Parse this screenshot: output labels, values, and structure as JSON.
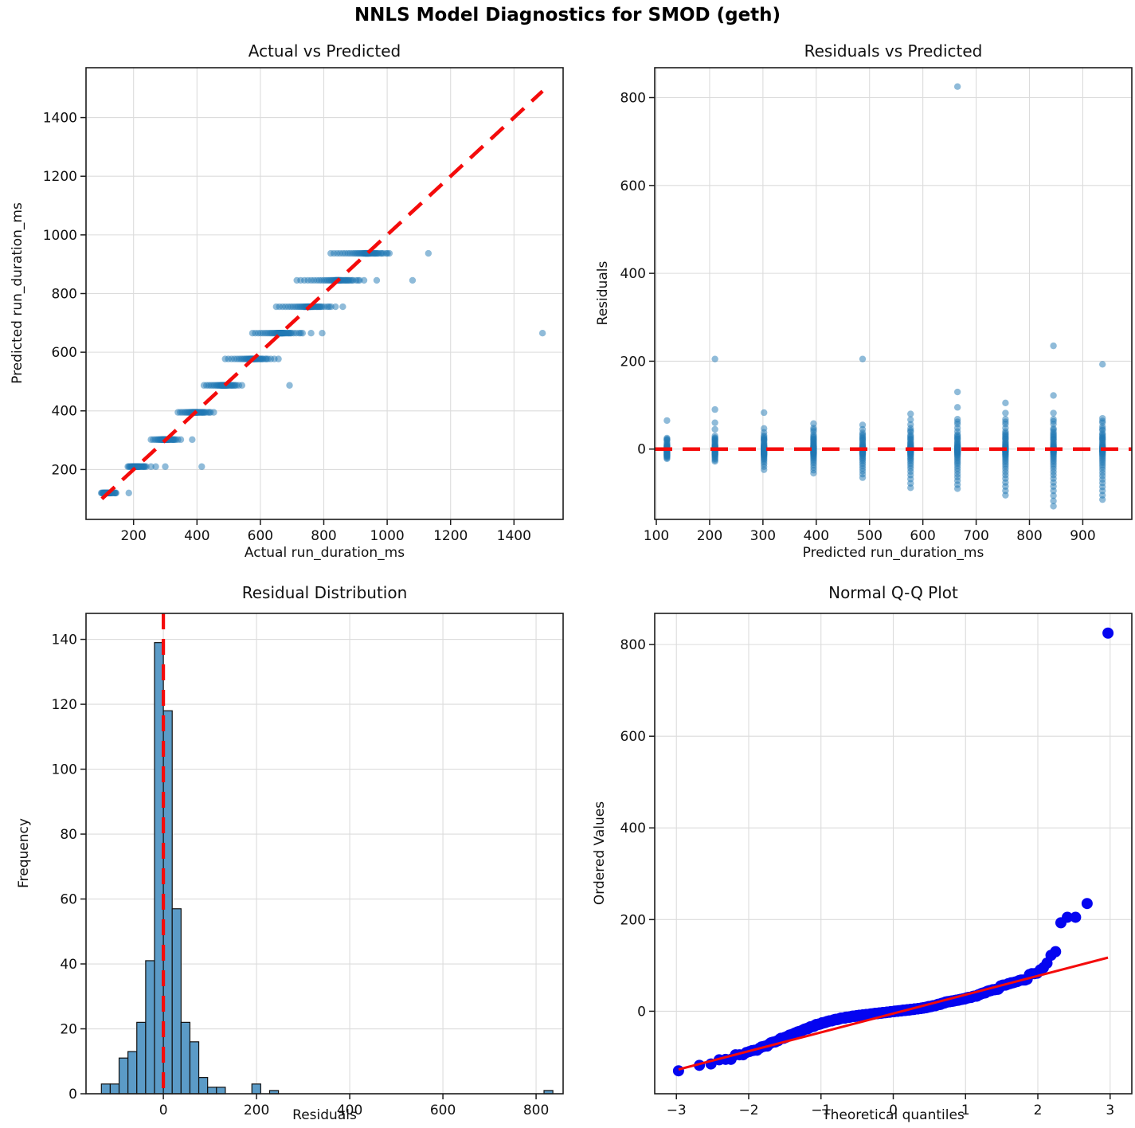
{
  "figure": {
    "title": "NNLS Model Diagnostics for SMOD (geth)"
  },
  "colors": {
    "background": "#ffffff",
    "grid": "#dcdcdc",
    "spine": "#1c1c1c",
    "tick_label": "#111111",
    "scatter_point": "#1f77b4",
    "scatter_opacity": 0.5,
    "hist_fill": "#5b9bc7",
    "hist_edge": "#111111",
    "qq_point": "#0505f0",
    "reference_red": "#f40b0b"
  },
  "chart_data": {
    "dataset": {
      "description": "Model points grouped by predicted step value; residual = actual - predicted. Shared by all four panels.",
      "bands": [
        {
          "predicted": 120,
          "residuals": [
            -22,
            -20,
            -18,
            -16,
            -15,
            -14,
            -13,
            -12,
            -11,
            -10,
            -9,
            -8,
            -7,
            -6,
            -5,
            -4,
            -3,
            -2,
            -1,
            0,
            1,
            2,
            3,
            4,
            5,
            6,
            7,
            8,
            10,
            12,
            15,
            20,
            21,
            23,
            25,
            65
          ]
        },
        {
          "predicted": 210,
          "residuals": [
            -28,
            -25,
            -22,
            -19,
            -17,
            -15,
            -13,
            -12,
            -11,
            -10,
            -9,
            -8,
            -7,
            -6,
            -5,
            -4,
            -3,
            -2,
            -1,
            0,
            1,
            2,
            3,
            4,
            5,
            6,
            7,
            8,
            10,
            12,
            15,
            18,
            20,
            22,
            24,
            26,
            30,
            45,
            60,
            90,
            205
          ]
        },
        {
          "predicted": 302,
          "residuals": [
            -47,
            -40,
            -34,
            -29,
            -25,
            -22,
            -19,
            -17,
            -15,
            -13,
            -12,
            -11,
            -10,
            -9,
            -8,
            -7,
            -6,
            -5,
            -4,
            -3,
            -2,
            -1,
            0,
            1,
            2,
            3,
            4,
            5,
            6,
            7,
            9,
            11,
            13,
            16,
            20,
            21,
            23,
            25,
            28,
            31,
            38,
            47,
            83
          ]
        },
        {
          "predicted": 395,
          "residuals": [
            -55,
            -48,
            -42,
            -36,
            -31,
            -27,
            -23,
            -20,
            -17,
            -15,
            -13,
            -11,
            -10,
            -9,
            -8,
            -7,
            -6,
            -5,
            -4,
            -3,
            -2,
            -1,
            0,
            1,
            2,
            3,
            4,
            5,
            6,
            7,
            9,
            11,
            13,
            15,
            18,
            20,
            22,
            24,
            27,
            29,
            33,
            40,
            44,
            48,
            58
          ]
        },
        {
          "predicted": 487,
          "residuals": [
            -65,
            -57,
            -50,
            -44,
            -38,
            -33,
            -28,
            -24,
            -21,
            -18,
            -15,
            -13,
            -11,
            -10,
            -9,
            -8,
            -7,
            -6,
            -5,
            -4,
            -3,
            -2,
            -1,
            0,
            1,
            2,
            3,
            4,
            5,
            6,
            8,
            10,
            12,
            15,
            19,
            21,
            24,
            26,
            30,
            33,
            37,
            45,
            55,
            205
          ]
        },
        {
          "predicted": 577,
          "residuals": [
            -88,
            -78,
            -68,
            -59,
            -51,
            -44,
            -38,
            -33,
            -28,
            -24,
            -21,
            -18,
            -15,
            -13,
            -11,
            -9,
            -8,
            -7,
            -6,
            -5,
            -4,
            -3,
            -2,
            -1,
            0,
            1,
            2,
            3,
            4,
            5,
            6,
            8,
            10,
            12,
            14,
            17,
            21,
            23,
            26,
            29,
            32,
            39,
            42,
            47,
            56,
            67,
            80
          ]
        },
        {
          "predicted": 665,
          "residuals": [
            -90,
            -81,
            -72,
            -64,
            -57,
            -50,
            -44,
            -38,
            -33,
            -29,
            -25,
            -21,
            -18,
            -15,
            -13,
            -11,
            -9,
            -8,
            -7,
            -6,
            -5,
            -4,
            -3,
            -2,
            -1,
            0,
            1,
            2,
            3,
            4,
            5,
            6,
            8,
            10,
            12,
            15,
            18,
            22,
            24,
            27,
            30,
            33,
            40,
            48,
            57,
            62,
            68,
            95,
            130,
            825
          ]
        },
        {
          "predicted": 755,
          "residuals": [
            -105,
            -95,
            -85,
            -76,
            -67,
            -59,
            -52,
            -45,
            -39,
            -34,
            -29,
            -25,
            -21,
            -18,
            -15,
            -13,
            -11,
            -9,
            -7,
            -6,
            -5,
            -4,
            -3,
            -2,
            -1,
            0,
            1,
            2,
            3,
            4,
            6,
            8,
            10,
            12,
            15,
            18,
            22,
            24,
            27,
            30,
            33,
            36,
            40,
            48,
            57,
            62,
            68,
            82,
            105
          ]
        },
        {
          "predicted": 845,
          "residuals": [
            -130,
            -118,
            -106,
            -95,
            -85,
            -76,
            -67,
            -59,
            -52,
            -45,
            -39,
            -34,
            -29,
            -25,
            -21,
            -18,
            -15,
            -12,
            -10,
            -8,
            -7,
            -6,
            -5,
            -4,
            -3,
            -2,
            -1,
            0,
            1,
            2,
            3,
            4,
            5,
            7,
            9,
            11,
            14,
            17,
            21,
            23,
            26,
            29,
            32,
            35,
            39,
            44,
            47,
            57,
            63,
            68,
            82,
            122,
            235
          ]
        },
        {
          "predicted": 937,
          "residuals": [
            -115,
            -105,
            -95,
            -86,
            -77,
            -69,
            -61,
            -54,
            -47,
            -41,
            -36,
            -31,
            -27,
            -23,
            -19,
            -16,
            -13,
            -11,
            -9,
            -7,
            -6,
            -5,
            -4,
            -3,
            -2,
            -1,
            0,
            1,
            2,
            3,
            4,
            5,
            7,
            9,
            11,
            14,
            17,
            21,
            22,
            25,
            27,
            30,
            33,
            36,
            43,
            46,
            51,
            60,
            64,
            70,
            193
          ]
        }
      ]
    },
    "panels": [
      {
        "id": "actual-vs-predicted",
        "type": "scatter-identity",
        "title": "Actual vs Predicted",
        "xlabel": "Actual run_duration_ms",
        "ylabel": "Predicted run_duration_ms",
        "xlim": [
          50,
          1555
        ],
        "ylim": [
          30,
          1570
        ],
        "xticks": [
          200,
          400,
          600,
          800,
          1000,
          1200,
          1400
        ],
        "yticks": [
          200,
          400,
          600,
          800,
          1000,
          1200,
          1400
        ],
        "identity_line": {
          "x1": 100,
          "y1": 100,
          "x2": 1490,
          "y2": 1490
        }
      },
      {
        "id": "residuals-vs-predicted",
        "type": "scatter-residual",
        "title": "Residuals vs Predicted",
        "xlabel": "Predicted run_duration_ms",
        "ylabel": "Residuals",
        "xlim": [
          97,
          992
        ],
        "ylim": [
          -160,
          868
        ],
        "xticks": [
          100,
          200,
          300,
          400,
          500,
          600,
          700,
          800,
          900
        ],
        "yticks": [
          0,
          200,
          400,
          600,
          800
        ],
        "zero_line_y": 0
      },
      {
        "id": "residual-distribution",
        "type": "histogram",
        "title": "Residual Distribution",
        "xlabel": "Residuals",
        "ylabel": "Frequency",
        "xlim": [
          -166,
          858
        ],
        "ylim": [
          0,
          148
        ],
        "xticks": [
          0,
          200,
          400,
          600,
          800
        ],
        "yticks": [
          0,
          20,
          40,
          60,
          80,
          100,
          120,
          140
        ],
        "bin_width": 19,
        "bin_origin": -133,
        "vline_x": 0
      },
      {
        "id": "normal-qq",
        "type": "qq",
        "title": "Normal Q-Q Plot",
        "xlabel": "Theoretical quantiles",
        "ylabel": "Ordered Values",
        "xlim": [
          -3.3,
          3.3
        ],
        "ylim": [
          -180,
          868
        ],
        "xticks": [
          -3,
          -2,
          -1,
          0,
          1,
          2,
          3
        ],
        "yticks": [
          0,
          200,
          400,
          600,
          800
        ],
        "fit_line": {
          "x1": -2.97,
          "y1": -127,
          "x2": 2.97,
          "y2": 117
        }
      }
    ]
  }
}
